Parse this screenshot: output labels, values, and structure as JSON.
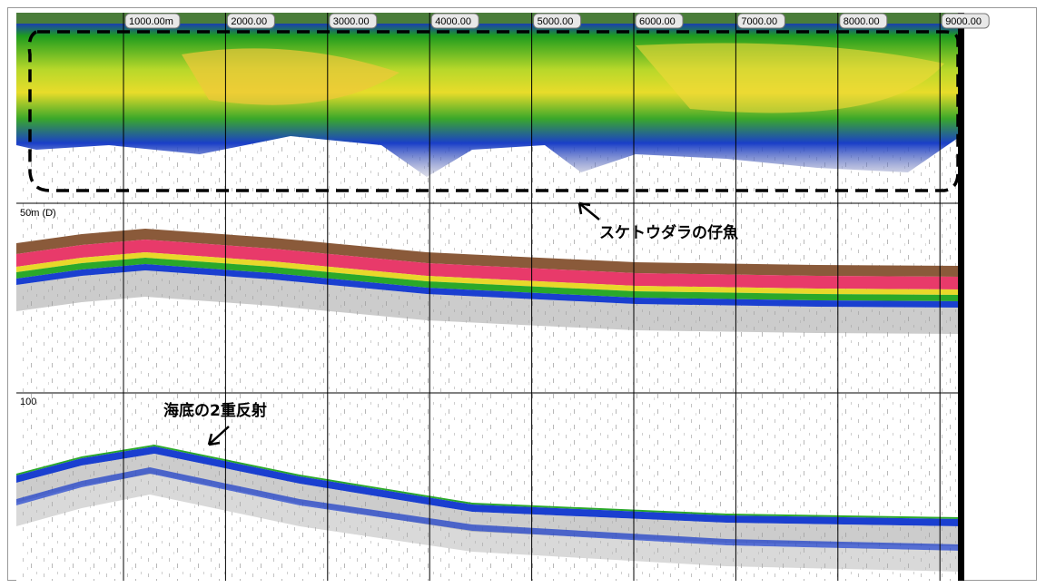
{
  "distance_labels": [
    "1000.00m",
    "2000.00",
    "3000.00",
    "4000.00",
    "5000.00",
    "6000.00",
    "7000.00",
    "8000.00",
    "9000.00"
  ],
  "depth_labels": [
    "50m (D)",
    "100"
  ],
  "annotations": [
    "スケトウダラの仔魚",
    "海底の2重反射"
  ]
}
